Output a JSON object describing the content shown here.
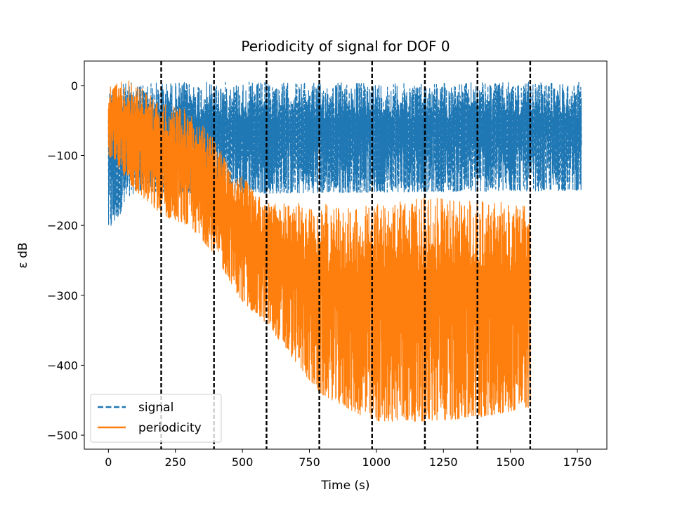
{
  "chart_data": {
    "type": "line",
    "title": "Periodicity of signal for DOF 0",
    "xlabel": "Time (s)",
    "ylabel": "ε dB",
    "xlim": [
      -90,
      1860
    ],
    "ylim": [
      -520,
      35
    ],
    "xticks": [
      0,
      250,
      500,
      750,
      1000,
      1250,
      1500,
      1750
    ],
    "xtick_labels": [
      "0",
      "250",
      "500",
      "750",
      "1000",
      "1250",
      "1500",
      "1750"
    ],
    "yticks": [
      0,
      -100,
      -200,
      -300,
      -400,
      -500
    ],
    "ytick_labels": [
      "0",
      "−100",
      "−200",
      "−300",
      "−400",
      "−500"
    ],
    "grid": false,
    "legend_position": "lower-left",
    "vertical_lines": [
      197,
      394,
      590,
      787,
      984,
      1181,
      1377,
      1574
    ],
    "series": [
      {
        "name": "signal",
        "color": "#1f77b4",
        "linestyle": "dashed",
        "x_range": [
          0,
          1765
        ],
        "upper_envelope": [
          [
            0,
            0
          ],
          [
            100,
            5
          ],
          [
            300,
            5
          ],
          [
            1765,
            5
          ]
        ],
        "lower_envelope": [
          [
            0,
            -210
          ],
          [
            100,
            -150
          ],
          [
            300,
            -155
          ],
          [
            1765,
            -150
          ]
        ]
      },
      {
        "name": "periodicity",
        "color": "#ff7f0e",
        "linestyle": "solid",
        "x_range": [
          0,
          1574
        ],
        "upper_envelope": [
          [
            0,
            0
          ],
          [
            60,
            10
          ],
          [
            100,
            5
          ],
          [
            197,
            -25
          ],
          [
            300,
            -35
          ],
          [
            394,
            -75
          ],
          [
            500,
            -130
          ],
          [
            590,
            -165
          ],
          [
            787,
            -170
          ],
          [
            984,
            -170
          ],
          [
            1181,
            -160
          ],
          [
            1377,
            -165
          ],
          [
            1574,
            -170
          ]
        ],
        "lower_envelope": [
          [
            0,
            -100
          ],
          [
            100,
            -150
          ],
          [
            197,
            -185
          ],
          [
            300,
            -200
          ],
          [
            394,
            -240
          ],
          [
            500,
            -310
          ],
          [
            590,
            -340
          ],
          [
            787,
            -440
          ],
          [
            984,
            -480
          ],
          [
            1181,
            -480
          ],
          [
            1377,
            -475
          ],
          [
            1574,
            -460
          ]
        ]
      }
    ]
  }
}
